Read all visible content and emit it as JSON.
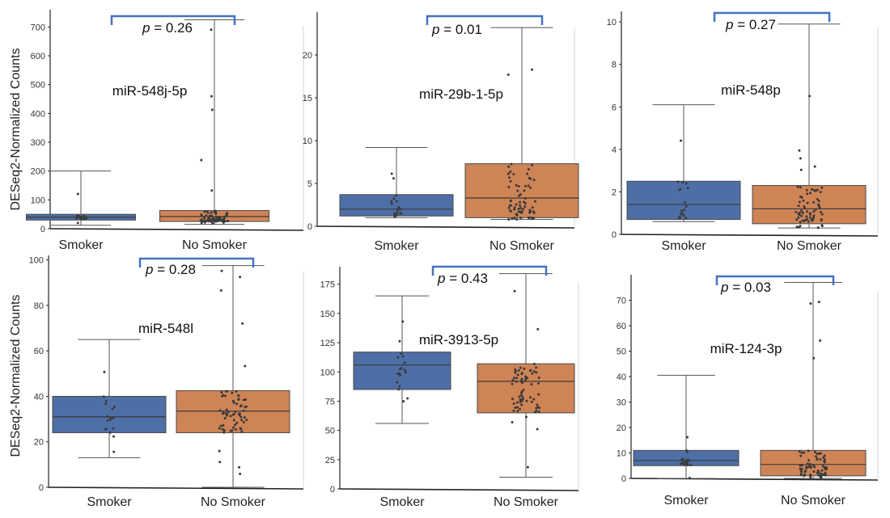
{
  "y_axis_label": "DESeq2-Normalized Counts",
  "colors": {
    "smoker": "#4e6ea6",
    "nosmoker": "#cf8456",
    "bracket": "#4472c4",
    "point": "#3a3a3a",
    "whisker": "#555555"
  },
  "chart_data": [
    {
      "type": "box",
      "title": "miR-548j-5p",
      "p_prefix": "p",
      "p_value": "= 0.26",
      "categories": [
        "Smoker",
        "No Smoker"
      ],
      "ylim": [
        0,
        760
      ],
      "yticks": [
        0,
        100,
        200,
        300,
        400,
        500,
        600,
        700
      ],
      "boxes": [
        {
          "min": 12,
          "q1": 30,
          "median": 40,
          "q3": 50,
          "max": 200
        },
        {
          "min": 15,
          "q1": 25,
          "median": 42,
          "q3": 63,
          "max": 725
        }
      ]
    },
    {
      "type": "box",
      "title": "miR-29b-1-5p",
      "p_prefix": "p",
      "p_value": "= 0.01",
      "categories": [
        "Smoker",
        "No Smoker"
      ],
      "ylim": [
        0,
        25
      ],
      "yticks": [
        0,
        5,
        10,
        15,
        20
      ],
      "boxes": [
        {
          "min": 1,
          "q1": 1.2,
          "median": 2,
          "q3": 3.7,
          "max": 9.2
        },
        {
          "min": 0.8,
          "q1": 1,
          "median": 3.3,
          "q3": 7.3,
          "max": 23.2
        }
      ]
    },
    {
      "type": "box",
      "title": "miR-548p",
      "p_prefix": "p",
      "p_value": "= 0.27",
      "categories": [
        "Smoker",
        "No Smoker"
      ],
      "ylim": [
        0,
        10.5
      ],
      "yticks": [
        0,
        2,
        4,
        6,
        8,
        10
      ],
      "boxes": [
        {
          "min": 0.6,
          "q1": 0.7,
          "median": 1.4,
          "q3": 2.5,
          "max": 6.1
        },
        {
          "min": 0.3,
          "q1": 0.5,
          "median": 1.2,
          "q3": 2.3,
          "max": 9.9
        }
      ]
    },
    {
      "type": "box",
      "title": "miR-548l",
      "p_prefix": "p",
      "p_value": "= 0.28",
      "categories": [
        "Smoker",
        "No Smoker"
      ],
      "ylim": [
        0,
        102
      ],
      "yticks": [
        0,
        20,
        40,
        60,
        80,
        100
      ],
      "boxes": [
        {
          "min": 13,
          "q1": 24,
          "median": 31,
          "q3": 40,
          "max": 65
        },
        {
          "min": 0,
          "q1": 24,
          "median": 33.5,
          "q3": 42.5,
          "max": 97.5
        }
      ]
    },
    {
      "type": "box",
      "title": "miR-3913-5p",
      "p_prefix": "p",
      "p_value": "= 0.43",
      "categories": [
        "Smoker",
        "No Smoker"
      ],
      "ylim": [
        0,
        190
      ],
      "yticks": [
        0,
        25,
        50,
        75,
        100,
        125,
        150,
        175
      ],
      "boxes": [
        {
          "min": 56,
          "q1": 85,
          "median": 106,
          "q3": 117,
          "max": 165
        },
        {
          "min": 10,
          "q1": 65,
          "median": 92,
          "q3": 107,
          "max": 184
        }
      ]
    },
    {
      "type": "box",
      "title": "miR-124-3p",
      "p_prefix": "p",
      "p_value": "= 0.03",
      "categories": [
        "Smoker",
        "No Smoker"
      ],
      "ylim": [
        0,
        80
      ],
      "yticks": [
        0,
        10,
        20,
        30,
        40,
        50,
        60,
        70
      ],
      "boxes": [
        {
          "min": 0,
          "q1": 5,
          "median": 7,
          "q3": 11,
          "max": 40.5
        },
        {
          "min": 0,
          "q1": 1,
          "median": 5.5,
          "q3": 11,
          "max": 77
        }
      ]
    }
  ]
}
